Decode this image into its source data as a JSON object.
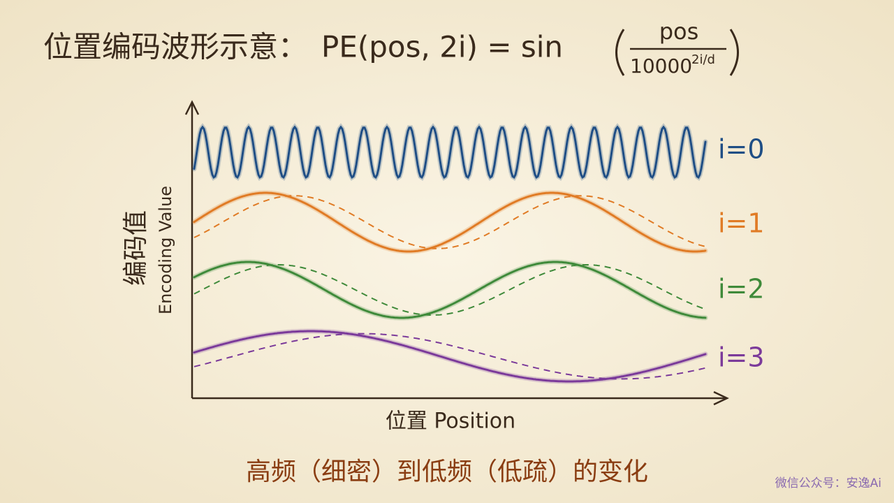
{
  "header": {
    "title": "位置编码波形示意：",
    "formula": "PE(pos, 2i) = sin",
    "numerator": "pos",
    "denominator": "10000",
    "exponent": "2i/d"
  },
  "axes": {
    "y_label_cn": "编码值",
    "y_label_en": "Encoding Value",
    "x_label": "位置 Position"
  },
  "waves": [
    {
      "label": "i=0",
      "color": "#1f4e85"
    },
    {
      "label": "i=1",
      "color": "#e07b25"
    },
    {
      "label": "i=2",
      "color": "#3f8a3a"
    },
    {
      "label": "i=3",
      "color": "#7b3a9a"
    }
  ],
  "caption": "高频（细密）到低频（低疏）的变化",
  "watermark": "微信公众号：安逸Ai"
}
